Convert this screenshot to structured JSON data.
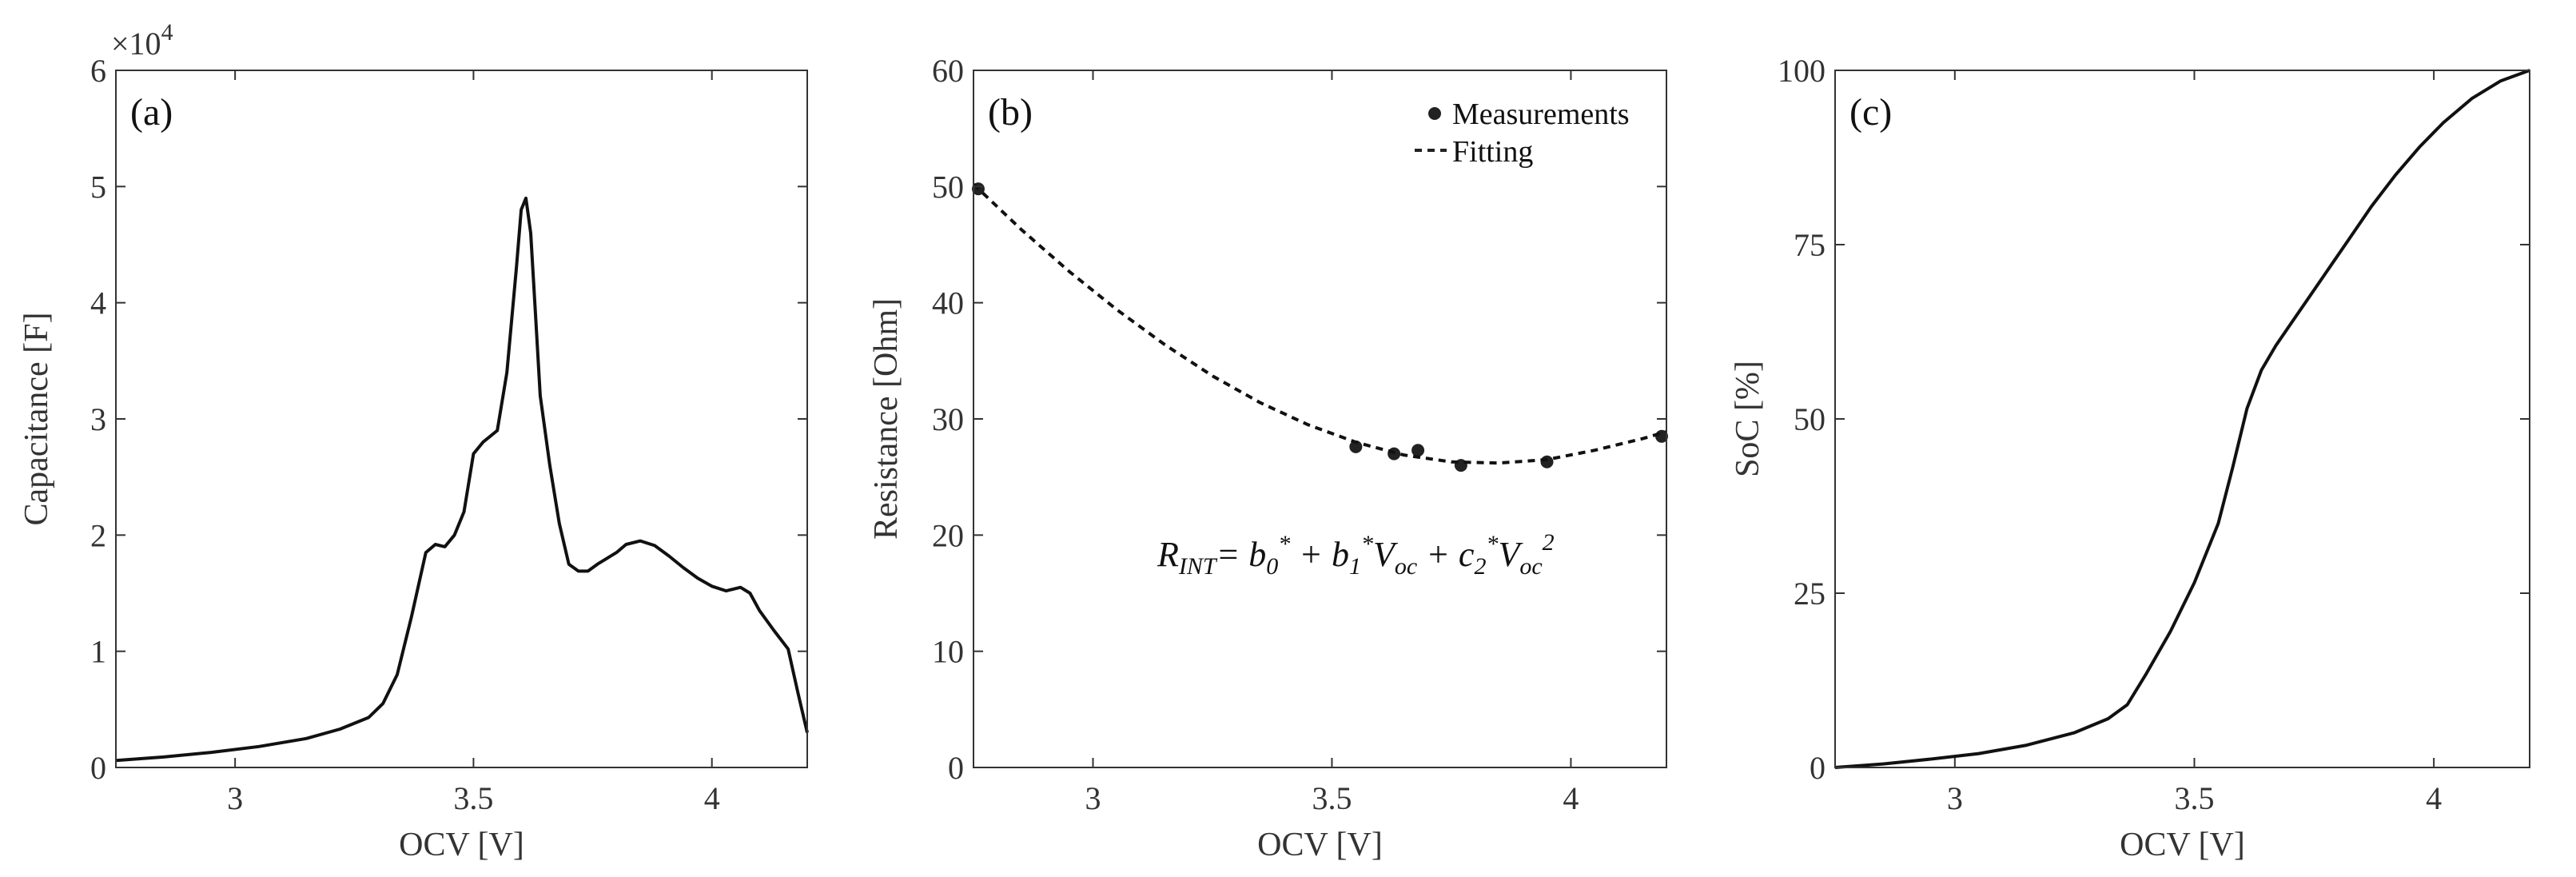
{
  "chart_data": [
    {
      "type": "line",
      "panel_label": "(a)",
      "xlabel": "OCV [V]",
      "ylabel": "Capacitance [F]",
      "xlim": [
        2.75,
        4.2
      ],
      "ylim": [
        0,
        60000
      ],
      "x_ticks": [
        3,
        3.5,
        4
      ],
      "x_tick_labels": [
        "3",
        "3.5",
        "4"
      ],
      "y_ticks": [
        0,
        10000,
        20000,
        30000,
        40000,
        50000,
        60000
      ],
      "y_tick_labels": [
        "0",
        "1",
        "2",
        "3",
        "4",
        "5",
        "6"
      ],
      "y_exponent_base": "×10",
      "y_exponent_power": "4",
      "series": [
        {
          "name": "Capacitance",
          "x": [
            2.75,
            2.85,
            2.95,
            3.05,
            3.15,
            3.22,
            3.28,
            3.31,
            3.34,
            3.37,
            3.4,
            3.42,
            3.44,
            3.46,
            3.48,
            3.5,
            3.52,
            3.55,
            3.57,
            3.59,
            3.6,
            3.61,
            3.62,
            3.63,
            3.64,
            3.66,
            3.68,
            3.7,
            3.72,
            3.74,
            3.76,
            3.78,
            3.8,
            3.82,
            3.85,
            3.88,
            3.91,
            3.94,
            3.97,
            4.0,
            4.03,
            4.06,
            4.08,
            4.1,
            4.13,
            4.16,
            4.18,
            4.2
          ],
          "values": [
            600,
            900,
            1300,
            1800,
            2500,
            3300,
            4300,
            5500,
            8000,
            13000,
            18500,
            19200,
            19000,
            20000,
            22000,
            27000,
            28000,
            29000,
            34000,
            43000,
            48000,
            49000,
            46000,
            39000,
            32000,
            26000,
            21000,
            17500,
            16900,
            16900,
            17500,
            18000,
            18500,
            19200,
            19500,
            19100,
            18200,
            17200,
            16300,
            15600,
            15200,
            15500,
            15000,
            13500,
            11800,
            10200,
            6500,
            3000
          ]
        }
      ]
    },
    {
      "type": "scatter",
      "panel_label": "(b)",
      "xlabel": "OCV [V]",
      "ylabel": "Resistance [Ohm]",
      "xlim": [
        2.75,
        4.2
      ],
      "ylim": [
        0,
        60
      ],
      "x_ticks": [
        3,
        3.5,
        4
      ],
      "x_tick_labels": [
        "3",
        "3.5",
        "4"
      ],
      "y_ticks": [
        0,
        10,
        20,
        30,
        40,
        50,
        60
      ],
      "y_tick_labels": [
        "0",
        "10",
        "20",
        "30",
        "40",
        "50",
        "60"
      ],
      "legend": [
        "Measurements",
        "Fitting"
      ],
      "legend_position": "top-right",
      "annotation": {
        "r": "R",
        "r_sub": "INT",
        "eq": "= ",
        "b0": "b",
        "b0_sub": "0",
        "b0_sup": "*",
        "plus1": " + ",
        "b1": "b",
        "b1_sub": "1",
        "b1_sup": "*",
        "v1": "V",
        "v1_sub": "oc",
        "plus2": " + ",
        "c2": "c",
        "c2_sub": "2",
        "c2_sup": "*",
        "v2": "V",
        "v2_sub": "oc",
        "v2_sup": "2"
      },
      "series": [
        {
          "name": "Measurements",
          "x": [
            2.76,
            3.55,
            3.63,
            3.68,
            3.77,
            3.95,
            4.19
          ],
          "values": [
            49.8,
            27.6,
            27.0,
            27.3,
            26.0,
            26.3,
            28.5
          ]
        },
        {
          "name": "Fitting",
          "style": "dashed",
          "x": [
            2.75,
            2.85,
            2.95,
            3.05,
            3.15,
            3.25,
            3.35,
            3.45,
            3.55,
            3.65,
            3.75,
            3.85,
            3.95,
            4.05,
            4.15,
            4.2
          ],
          "values": [
            50.2,
            46.3,
            42.7,
            39.4,
            36.4,
            33.7,
            31.4,
            29.5,
            28.0,
            26.9,
            26.3,
            26.2,
            26.5,
            27.3,
            28.3,
            28.9
          ]
        }
      ]
    },
    {
      "type": "line",
      "panel_label": "(c)",
      "xlabel": "OCV [V]",
      "ylabel": "SoC [%]",
      "xlim": [
        2.75,
        4.2
      ],
      "ylim": [
        0,
        100
      ],
      "x_ticks": [
        3,
        3.5,
        4
      ],
      "x_tick_labels": [
        "3",
        "3.5",
        "4"
      ],
      "y_ticks": [
        0,
        25,
        50,
        75,
        100
      ],
      "y_tick_labels": [
        "0",
        "25",
        "50",
        "75",
        "100"
      ],
      "series": [
        {
          "name": "SoC",
          "x": [
            2.75,
            2.85,
            2.95,
            3.05,
            3.15,
            3.25,
            3.32,
            3.36,
            3.4,
            3.45,
            3.5,
            3.55,
            3.58,
            3.61,
            3.64,
            3.67,
            3.7,
            3.73,
            3.77,
            3.82,
            3.87,
            3.92,
            3.97,
            4.02,
            4.08,
            4.14,
            4.18,
            4.2
          ],
          "values": [
            0,
            0.5,
            1.2,
            2.0,
            3.2,
            5.0,
            7.0,
            9.0,
            13.5,
            19.5,
            26.5,
            35.0,
            43.0,
            51.5,
            57.0,
            60.5,
            63.5,
            66.5,
            70.5,
            75.5,
            80.5,
            85.0,
            89.0,
            92.5,
            96.0,
            98.5,
            99.5,
            100
          ]
        }
      ]
    }
  ]
}
